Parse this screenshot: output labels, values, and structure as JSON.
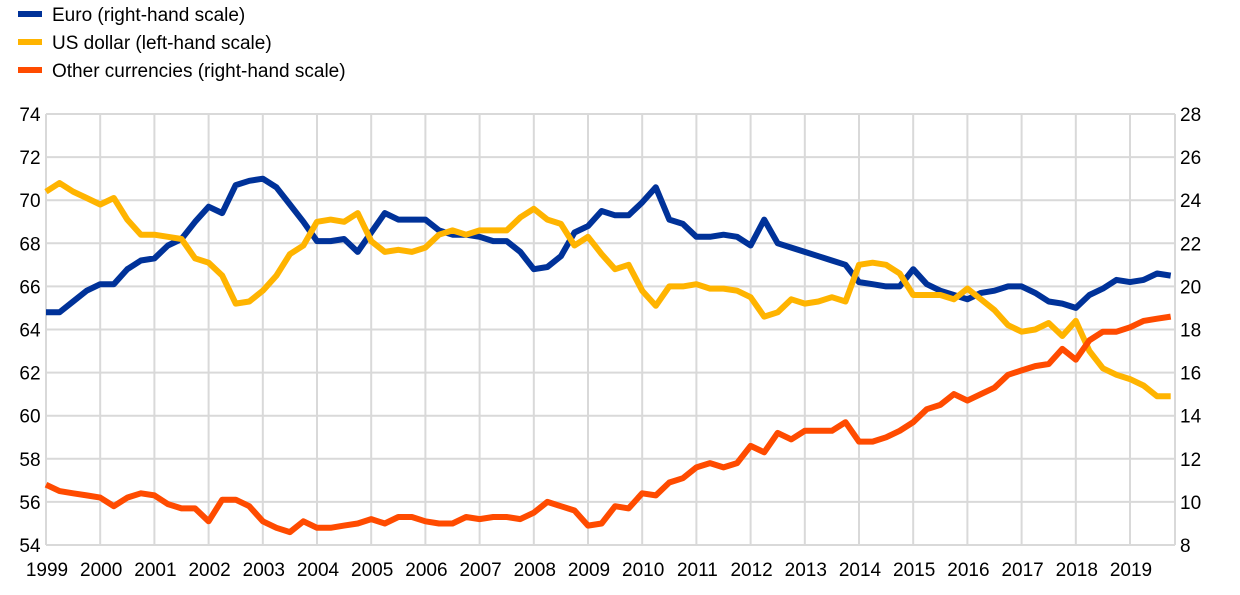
{
  "chart_data": {
    "type": "line",
    "x_start_year": 1999,
    "frequency": "quarterly",
    "x_tick_labels": [
      "1999",
      "2000",
      "2001",
      "2002",
      "2003",
      "2004",
      "2005",
      "2006",
      "2007",
      "2008",
      "2009",
      "2010",
      "2011",
      "2012",
      "2013",
      "2014",
      "2015",
      "2016",
      "2017",
      "2018",
      "2019"
    ],
    "y_left": {
      "range": [
        54,
        74
      ],
      "ticks": [
        "54",
        "56",
        "58",
        "60",
        "62",
        "64",
        "66",
        "68",
        "70",
        "72",
        "74"
      ]
    },
    "y_right": {
      "range": [
        8,
        28
      ],
      "ticks": [
        "8",
        "10",
        "12",
        "14",
        "16",
        "18",
        "20",
        "22",
        "24",
        "26",
        "28"
      ]
    },
    "grid": true,
    "legend_position": "top-left",
    "series": [
      {
        "name": "Euro (right-hand scale)",
        "axis": "right",
        "color": "#003299",
        "values": [
          18.8,
          18.8,
          19.3,
          19.8,
          20.1,
          20.1,
          20.8,
          21.2,
          21.3,
          21.9,
          22.2,
          23.0,
          23.7,
          23.4,
          24.7,
          24.9,
          25.0,
          24.6,
          23.8,
          23.0,
          22.1,
          22.1,
          22.2,
          21.6,
          22.5,
          23.4,
          23.1,
          23.1,
          23.1,
          22.6,
          22.4,
          22.4,
          22.3,
          22.1,
          22.1,
          21.6,
          20.8,
          20.9,
          21.4,
          22.5,
          22.8,
          23.5,
          23.3,
          23.3,
          23.9,
          24.6,
          23.1,
          22.9,
          22.3,
          22.3,
          22.4,
          22.3,
          21.9,
          23.1,
          22.0,
          21.8,
          21.6,
          21.4,
          21.2,
          21.0,
          20.2,
          20.1,
          20.0,
          20.0,
          20.8,
          20.1,
          19.8,
          19.6,
          19.4,
          19.7,
          19.8,
          20.0,
          20.0,
          19.7,
          19.3,
          19.2,
          19.0,
          19.6,
          19.9,
          20.3,
          20.2,
          20.3,
          20.6,
          20.5
        ]
      },
      {
        "name": "US dollar (left-hand scale)",
        "axis": "left",
        "color": "#FFB400",
        "values": [
          70.4,
          70.8,
          70.4,
          70.1,
          69.8,
          70.1,
          69.1,
          68.4,
          68.4,
          68.3,
          68.2,
          67.3,
          67.1,
          66.5,
          65.2,
          65.3,
          65.8,
          66.5,
          67.5,
          67.9,
          69.0,
          69.1,
          69.0,
          69.4,
          68.1,
          67.6,
          67.7,
          67.6,
          67.8,
          68.4,
          68.6,
          68.4,
          68.6,
          68.6,
          68.6,
          69.2,
          69.6,
          69.1,
          68.9,
          67.9,
          68.3,
          67.5,
          66.8,
          67.0,
          65.8,
          65.1,
          66.0,
          66.0,
          66.1,
          65.9,
          65.9,
          65.8,
          65.5,
          64.6,
          64.8,
          65.4,
          65.2,
          65.3,
          65.5,
          65.3,
          67.0,
          67.1,
          67.0,
          66.6,
          65.6,
          65.6,
          65.6,
          65.4,
          65.9,
          65.4,
          64.9,
          64.2,
          63.9,
          64.0,
          64.3,
          63.7,
          64.4,
          63.0,
          62.2,
          61.9,
          61.7,
          61.4,
          60.9,
          60.9
        ]
      },
      {
        "name": "Other currencies (right-hand scale)",
        "axis": "right",
        "color": "#FF4B00",
        "values": [
          10.8,
          10.5,
          10.4,
          10.3,
          10.2,
          9.8,
          10.2,
          10.4,
          10.3,
          9.9,
          9.7,
          9.7,
          9.1,
          10.1,
          10.1,
          9.8,
          9.1,
          8.8,
          8.6,
          9.1,
          8.8,
          8.8,
          8.9,
          9.0,
          9.2,
          9.0,
          9.3,
          9.3,
          9.1,
          9.0,
          9.0,
          9.3,
          9.2,
          9.3,
          9.3,
          9.2,
          9.5,
          10.0,
          9.8,
          9.6,
          8.9,
          9.0,
          9.8,
          9.7,
          10.4,
          10.3,
          10.9,
          11.1,
          11.6,
          11.8,
          11.6,
          11.8,
          12.6,
          12.3,
          13.2,
          12.9,
          13.3,
          13.3,
          13.3,
          13.7,
          12.8,
          12.8,
          13.0,
          13.3,
          13.7,
          14.3,
          14.5,
          15.0,
          14.7,
          15.0,
          15.3,
          15.9,
          16.1,
          16.3,
          16.4,
          17.1,
          16.6,
          17.5,
          17.9,
          17.9,
          18.1,
          18.4,
          18.5,
          18.6
        ]
      }
    ]
  }
}
